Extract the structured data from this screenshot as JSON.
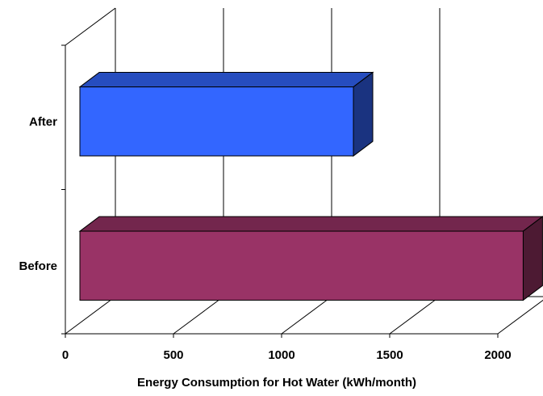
{
  "chart_data": {
    "type": "bar",
    "orientation": "horizontal",
    "style": "3d",
    "categories": [
      "After",
      "Before"
    ],
    "values": [
      1265,
      2050
    ],
    "xlabel": "Energy Consumption for Hot Water (kWh/month)",
    "ylabel": "",
    "title": "",
    "xlim": [
      0,
      2000
    ],
    "xticks": [
      0,
      500,
      1000,
      1500,
      2000
    ],
    "grid": "vertical",
    "legend": "none",
    "colors": {
      "After": "#3366FF",
      "Before": "#993366"
    }
  }
}
